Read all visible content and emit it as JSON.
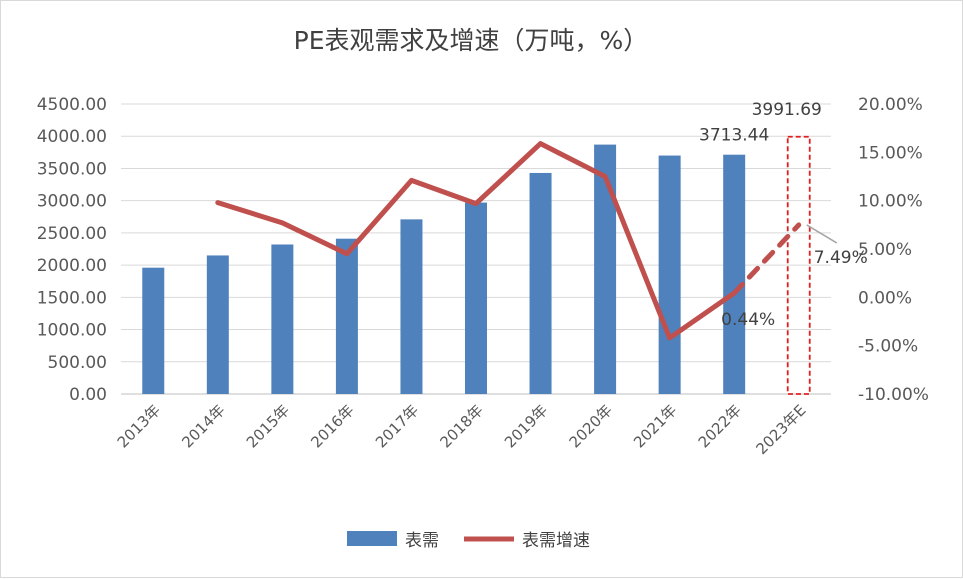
{
  "chart_data": {
    "type": "bar",
    "title": "PE表观需求及增速（万吨，%）",
    "categories": [
      "2013年",
      "2014年",
      "2015年",
      "2016年",
      "2017年",
      "2018年",
      "2019年",
      "2020年",
      "2021年",
      "2022年",
      "2023年E"
    ],
    "series": [
      {
        "name": "表需",
        "type": "bar",
        "axis": "left",
        "color": "#4f81bd",
        "values": [
          1960,
          2150,
          2320,
          2410,
          2710,
          2970,
          3430,
          3870,
          3700,
          3713.44,
          3991.69
        ]
      },
      {
        "name": "表需增速",
        "type": "line",
        "axis": "right",
        "color": "#c0504d",
        "values": [
          null,
          9.8,
          7.7,
          4.5,
          12.1,
          9.7,
          15.9,
          12.5,
          -4.2,
          0.44,
          7.49
        ]
      }
    ],
    "y_left": {
      "min": 0,
      "max": 4500,
      "step": 500,
      "tick_labels": [
        "0.00",
        "500.00",
        "1000.00",
        "1500.00",
        "2000.00",
        "2500.00",
        "3000.00",
        "3500.00",
        "4000.00",
        "4500.00"
      ]
    },
    "y_right": {
      "min": -10,
      "max": 20,
      "step": 5,
      "tick_labels": [
        "-10.00%",
        "-5.00%",
        "0.00%",
        "5.00%",
        "10.00%",
        "15.00%",
        "20.00%"
      ]
    },
    "data_labels": {
      "bar_2022": "3713.44",
      "bar_2023E": "3991.69",
      "rate_2022": "0.44%",
      "rate_2023E": "7.49%"
    },
    "forecast_category": "2023年E",
    "grid": true,
    "legend": {
      "position": "bottom",
      "items": [
        "表需",
        "表需增速"
      ]
    }
  }
}
